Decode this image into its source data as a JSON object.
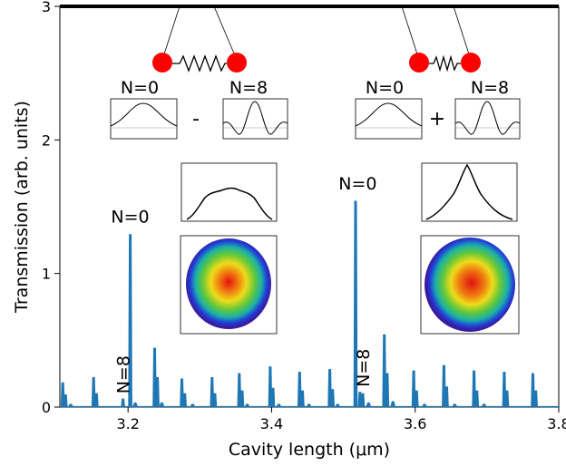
{
  "chart_data": {
    "type": "line",
    "title": "",
    "xlabel": "Cavity length (μm)",
    "ylabel": "Transmission (arb. units)",
    "xlim": [
      3.105,
      3.8
    ],
    "ylim": [
      0,
      3
    ],
    "x_ticks": [
      "3.2",
      "3.4",
      "3.6",
      "3.8"
    ],
    "y_ticks": [
      "0",
      "1",
      "2",
      "3"
    ],
    "grid": false,
    "series_color": "#1f77b4",
    "peaks": [
      {
        "x": 3.109,
        "y": 0.18
      },
      {
        "x": 3.113,
        "y": 0.09
      },
      {
        "x": 3.152,
        "y": 0.22
      },
      {
        "x": 3.156,
        "y": 0.1
      },
      {
        "x": 3.193,
        "y": 0.06
      },
      {
        "x": 3.203,
        "y": 1.29
      },
      {
        "x": 3.237,
        "y": 0.44
      },
      {
        "x": 3.241,
        "y": 0.22
      },
      {
        "x": 3.275,
        "y": 0.21
      },
      {
        "x": 3.279,
        "y": 0.1
      },
      {
        "x": 3.317,
        "y": 0.22
      },
      {
        "x": 3.321,
        "y": 0.1
      },
      {
        "x": 3.355,
        "y": 0.25
      },
      {
        "x": 3.359,
        "y": 0.12
      },
      {
        "x": 3.398,
        "y": 0.3
      },
      {
        "x": 3.402,
        "y": 0.14
      },
      {
        "x": 3.439,
        "y": 0.26
      },
      {
        "x": 3.443,
        "y": 0.12
      },
      {
        "x": 3.481,
        "y": 0.28
      },
      {
        "x": 3.485,
        "y": 0.13
      },
      {
        "x": 3.517,
        "y": 1.54
      },
      {
        "x": 3.523,
        "y": 0.11
      },
      {
        "x": 3.527,
        "y": 0.1
      },
      {
        "x": 3.557,
        "y": 0.54
      },
      {
        "x": 3.561,
        "y": 0.25
      },
      {
        "x": 3.598,
        "y": 0.27
      },
      {
        "x": 3.602,
        "y": 0.12
      },
      {
        "x": 3.64,
        "y": 0.31
      },
      {
        "x": 3.644,
        "y": 0.15
      },
      {
        "x": 3.682,
        "y": 0.27
      },
      {
        "x": 3.686,
        "y": 0.12
      },
      {
        "x": 3.724,
        "y": 0.26
      },
      {
        "x": 3.728,
        "y": 0.12
      },
      {
        "x": 3.764,
        "y": 0.25
      },
      {
        "x": 3.768,
        "y": 0.12
      }
    ],
    "small_bumps": [
      {
        "x": 3.12,
        "y": 0.02
      },
      {
        "x": 3.21,
        "y": 0.03
      },
      {
        "x": 3.247,
        "y": 0.03
      },
      {
        "x": 3.29,
        "y": 0.02
      },
      {
        "x": 3.366,
        "y": 0.02
      },
      {
        "x": 3.41,
        "y": 0.02
      },
      {
        "x": 3.452,
        "y": 0.02
      },
      {
        "x": 3.492,
        "y": 0.02
      },
      {
        "x": 3.535,
        "y": 0.03
      },
      {
        "x": 3.569,
        "y": 0.04
      },
      {
        "x": 3.613,
        "y": 0.02
      },
      {
        "x": 3.655,
        "y": 0.02
      },
      {
        "x": 3.696,
        "y": 0.02
      }
    ],
    "annotations": [
      {
        "text": "N=0",
        "x": 3.203,
        "y": 1.38,
        "rotate": 0
      },
      {
        "text": "N=8",
        "x": 3.193,
        "y": 0.1,
        "rotate": -90
      },
      {
        "text": "N=0",
        "x": 3.52,
        "y": 1.63,
        "rotate": 0
      },
      {
        "text": "N=8",
        "x": 3.527,
        "y": 0.15,
        "rotate": -90
      }
    ],
    "insets": {
      "left": {
        "mode_a": "N=0",
        "mode_b": "N=8",
        "operator": "-"
      },
      "right": {
        "mode_a": "N=0",
        "mode_b": "N=8",
        "operator": "+"
      }
    },
    "colors": {
      "axis": "#000000",
      "mass": "#ff0000"
    }
  }
}
